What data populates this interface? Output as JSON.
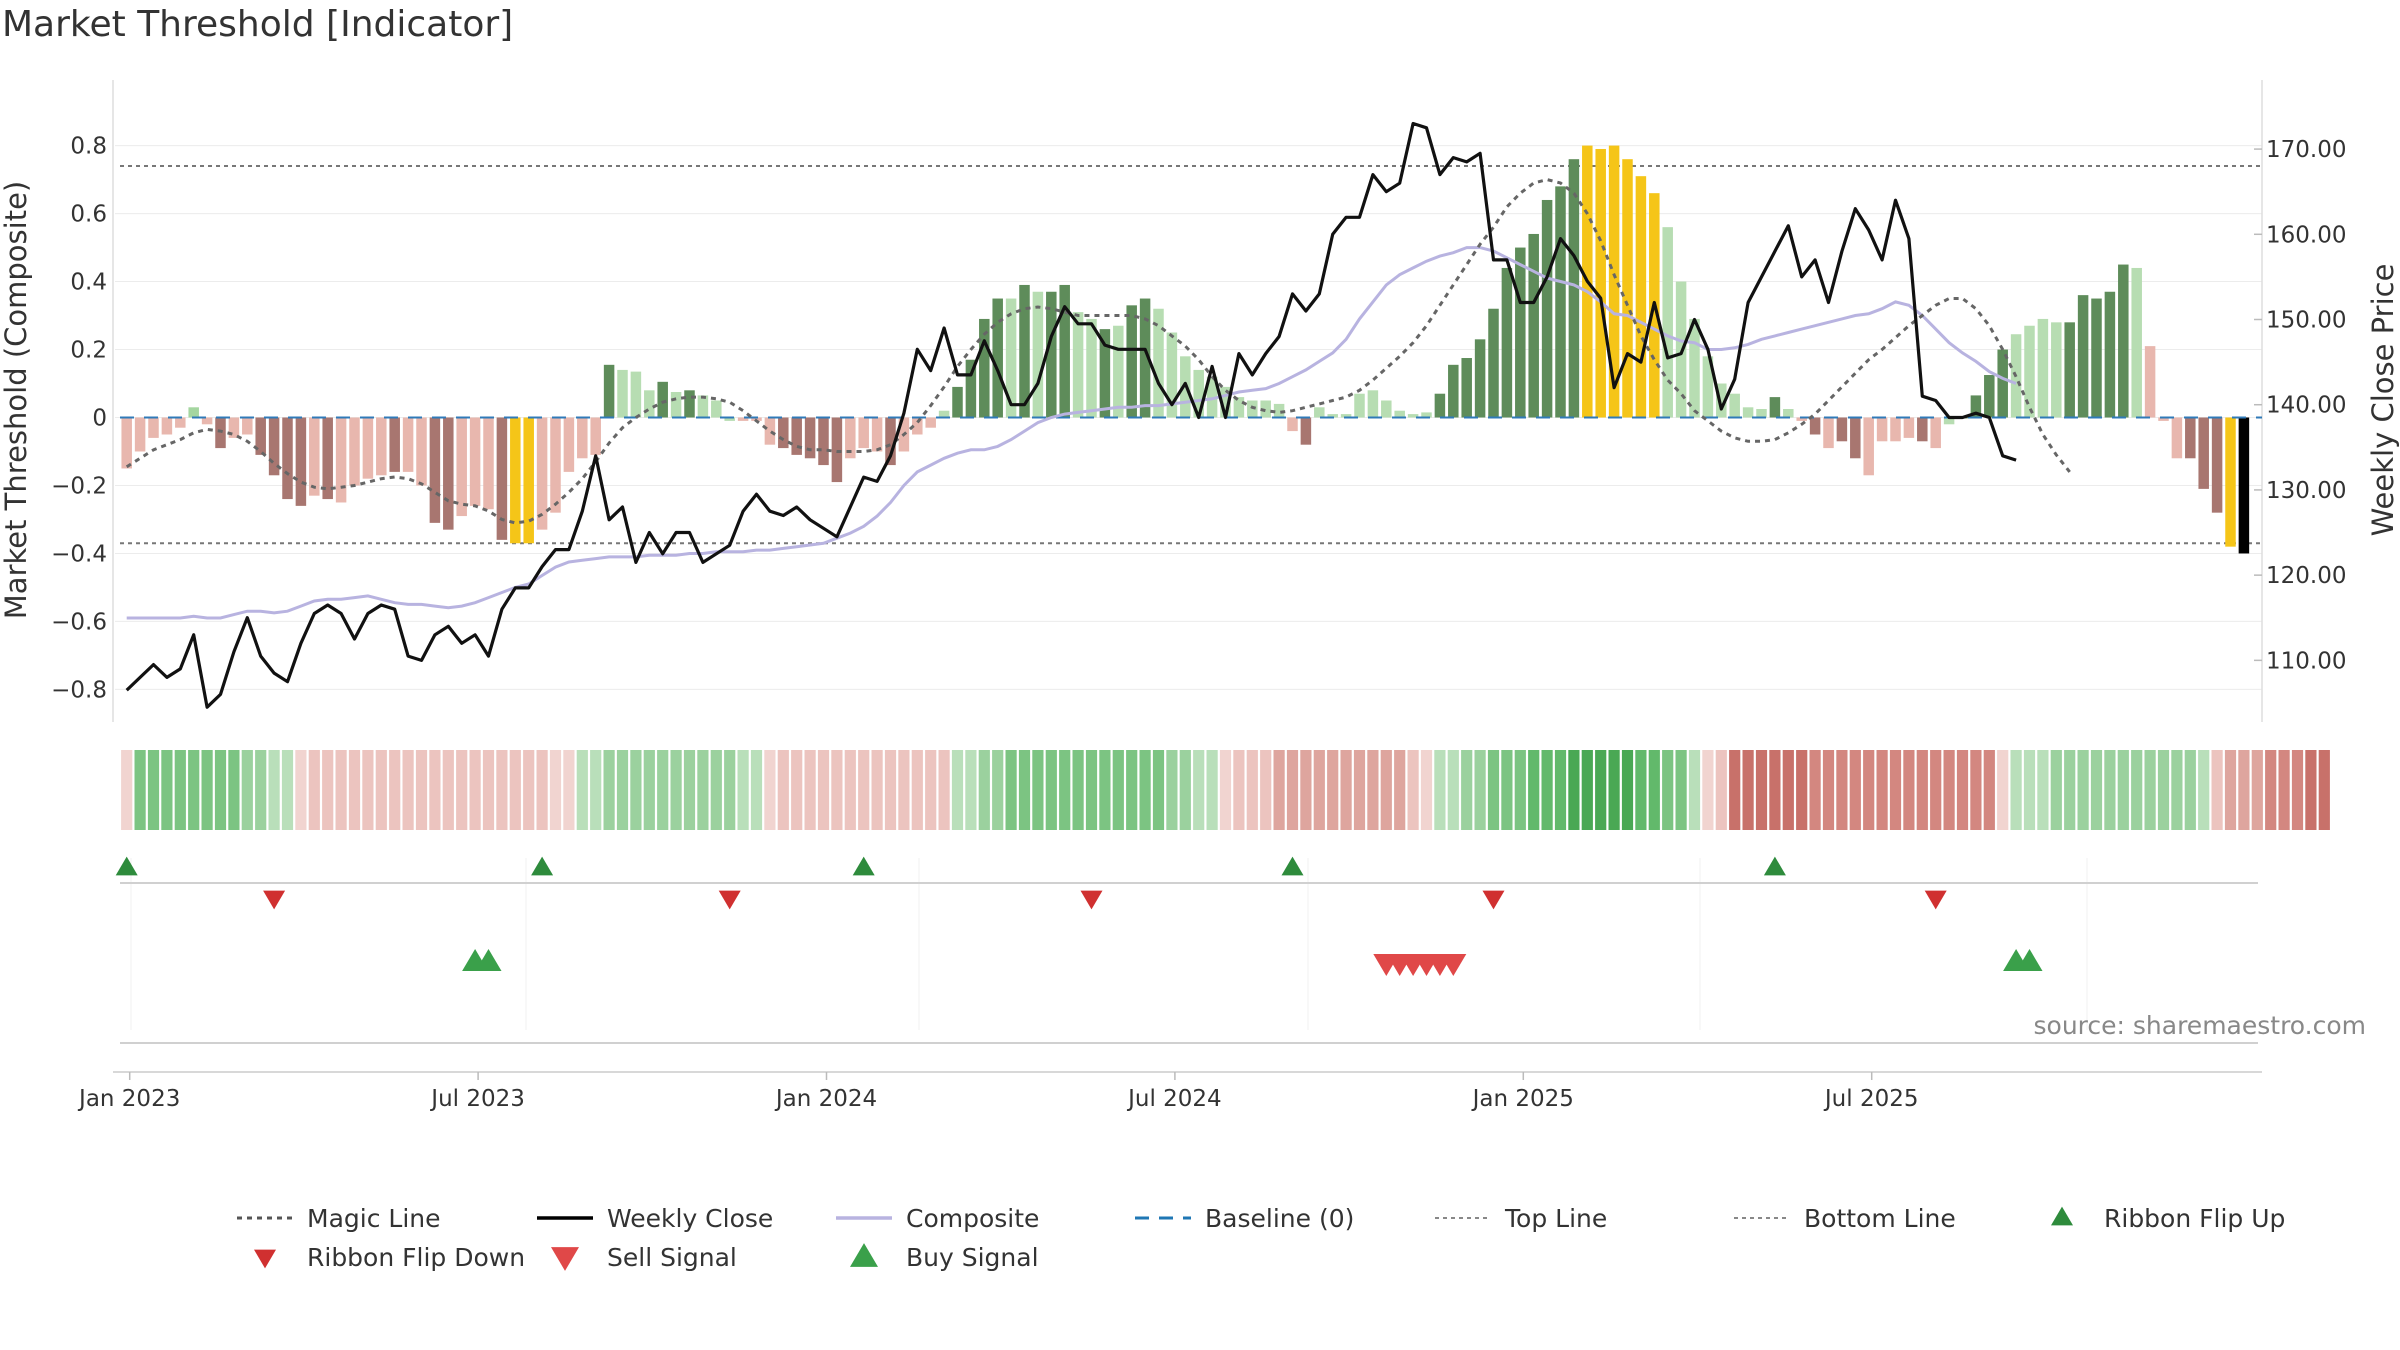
{
  "chart_data": {
    "title": "Market Threshold [Indicator]",
    "type": "bar",
    "ylabel_left": "Market Threshold (Composite)",
    "ylabel_right": "Weekly Close Price",
    "ylim_left": [
      -0.89,
      0.89
    ],
    "ylim_right": [
      103,
      174
    ],
    "left_ticks": [
      {
        "v": 0.8,
        "label": "0.8"
      },
      {
        "v": 0.6,
        "label": "0.6"
      },
      {
        "v": 0.4,
        "label": "0.4"
      },
      {
        "v": 0.2,
        "label": "0.2"
      },
      {
        "v": 0,
        "label": "0"
      },
      {
        "v": -0.2,
        "label": "−0.2"
      },
      {
        "v": -0.4,
        "label": "−0.4"
      },
      {
        "v": -0.6,
        "label": "−0.6"
      },
      {
        "v": -0.8,
        "label": "−0.8"
      }
    ],
    "right_ticks": [
      {
        "v": 170,
        "label": "170.00"
      },
      {
        "v": 160,
        "label": "160.00"
      },
      {
        "v": 150,
        "label": "150.00"
      },
      {
        "v": 140,
        "label": "140.00"
      },
      {
        "v": 130,
        "label": "130.00"
      },
      {
        "v": 120,
        "label": "120.00"
      },
      {
        "v": 110,
        "label": "110.00"
      }
    ],
    "x_ticks": [
      {
        "week": 1,
        "label": "Jan 2023"
      },
      {
        "week": 27,
        "label": "Jul 2023"
      },
      {
        "week": 53,
        "label": "Jan 2024"
      },
      {
        "week": 79,
        "label": "Jul 2024"
      },
      {
        "week": 105,
        "label": "Jan 2025"
      },
      {
        "week": 131,
        "label": "Jul 2025"
      }
    ],
    "top_line": 0.74,
    "bottom_line": -0.37,
    "composite": [
      -0.145,
      -0.115,
      -0.09,
      -0.075,
      -0.055,
      -0.04,
      -0.035,
      -0.04,
      -0.05,
      -0.065,
      -0.09,
      -0.12,
      -0.15,
      -0.175,
      -0.195,
      -0.205,
      -0.205,
      -0.2,
      -0.19,
      -0.18,
      -0.175,
      -0.18,
      -0.2,
      -0.225,
      -0.25,
      -0.26,
      -0.27,
      -0.29,
      -0.305,
      -0.31,
      -0.3,
      -0.28,
      -0.25,
      -0.215,
      -0.175,
      -0.12,
      -0.07,
      -0.03,
      0,
      0.03,
      0.05,
      0.06,
      0.065,
      0.065,
      0.06,
      0.05,
      0.02,
      -0.01,
      -0.04,
      -0.065,
      -0.085,
      -0.09,
      -0.09,
      -0.095,
      -0.1,
      -0.105,
      -0.1,
      -0.085,
      -0.055,
      -0.02,
      0.03,
      0.09,
      0.15,
      0.2,
      0.245,
      0.28,
      0.31,
      0.33,
      0.33,
      0.325,
      0.315,
      0.31,
      0.31,
      0.3,
      0.28,
      0.25,
      0.22,
      0.19,
      0.15,
      0.11,
      0.07,
      0.04,
      0.02,
      0.01,
      0.01,
      0.015,
      0.025,
      0.04,
      0.05,
      0.065,
      0.08,
      0.1,
      0.13,
      0.165,
      0.2,
      0.235,
      0.28,
      0.34,
      0.4,
      0.46,
      0.52,
      0.57,
      0.62,
      0.655,
      0.68,
      0.69,
      0.685,
      0.655,
      0.6,
      0.52,
      0.43,
      0.34,
      0.26,
      0.2,
      0.15,
      0.11,
      0.07,
      0.03,
      0,
      -0.03,
      -0.05,
      -0.065,
      -0.07,
      -0.07,
      -0.055,
      -0.03,
      0,
      0.03,
      0.06,
      0.1,
      0.14,
      0.18,
      0.215,
      0.245,
      0.275,
      0.3,
      0.33,
      0.35,
      0.34,
      0.3,
      0.24,
      0.16,
      0.07,
      -0.01,
      -0.07,
      -0.12,
      -0.165
    ],
    "bars": [
      -0.15,
      -0.1,
      -0.06,
      -0.05,
      -0.03,
      0.03,
      -0.02,
      -0.09,
      -0.06,
      -0.05,
      -0.11,
      -0.17,
      -0.24,
      -0.26,
      -0.23,
      -0.24,
      -0.25,
      -0.2,
      -0.18,
      -0.17,
      -0.16,
      -0.16,
      -0.2,
      -0.31,
      -0.33,
      -0.29,
      -0.26,
      -0.27,
      -0.36,
      -0.37,
      -0.37,
      -0.33,
      -0.28,
      -0.16,
      -0.12,
      -0.11,
      0.155,
      0.14,
      0.135,
      0.08,
      0.105,
      0.075,
      0.08,
      0.065,
      0.05,
      -0.01,
      -0.01,
      -0.01,
      -0.08,
      -0.09,
      -0.11,
      -0.12,
      -0.14,
      -0.19,
      -0.12,
      -0.09,
      -0.1,
      -0.14,
      -0.1,
      -0.05,
      -0.03,
      0.02,
      0.09,
      0.17,
      0.29,
      0.35,
      0.35,
      0.39,
      0.37,
      0.37,
      0.39,
      0.31,
      0.29,
      0.26,
      0.27,
      0.33,
      0.35,
      0.32,
      0.25,
      0.18,
      0.14,
      0.12,
      0.09,
      0.06,
      0.05,
      0.05,
      0.04,
      -0.04,
      -0.08,
      0.03,
      0.01,
      0.01,
      0.07,
      0.08,
      0.05,
      0.02,
      0.01,
      0.015,
      0.07,
      0.155,
      0.175,
      0.23,
      0.32,
      0.44,
      0.5,
      0.54,
      0.64,
      0.68,
      0.76,
      0.8,
      0.79,
      0.8,
      0.76,
      0.71,
      0.66,
      0.56,
      0.4,
      0.29,
      0.18,
      0.1,
      0.07,
      0.03,
      0.025,
      0.06,
      0.025,
      -0.01,
      -0.05,
      -0.09,
      -0.07,
      -0.12,
      -0.17,
      -0.07,
      -0.07,
      -0.06,
      -0.07,
      -0.09,
      -0.02,
      0,
      0.065,
      0.125,
      0.2,
      0.245,
      0.27,
      0.29,
      0.28,
      0.28,
      0.36,
      0.35,
      0.37,
      0.45,
      0.44,
      0.21,
      -0.01,
      -0.12,
      -0.12,
      -0.21,
      -0.28,
      -0.38,
      -0.4
    ],
    "bar_colors": [
      "#e8b7ae",
      "#e8b7ae",
      "#e8b7ae",
      "#e8b7ae",
      "#e8b7ae",
      "#a4d6a0",
      "#e8b7ae",
      "#a87670",
      "#e8b7ae",
      "#e8b7ae",
      "#a87670",
      "#a87670",
      "#a87670",
      "#a87670",
      "#e8b7ae",
      "#a87670",
      "#e8b7ae",
      "#e8b7ae",
      "#e8b7ae",
      "#e8b7ae",
      "#a87670",
      "#e8b7ae",
      "#e8b7ae",
      "#a87670",
      "#a87670",
      "#e8b7ae",
      "#e8b7ae",
      "#e8b7ae",
      "#a87670",
      "#f5c518",
      "#f5c518",
      "#e8b7ae",
      "#e8b7ae",
      "#e8b7ae",
      "#e8b7ae",
      "#e8b7ae",
      "#5e8c5a",
      "#b7ddb2",
      "#b7ddb2",
      "#b7ddb2",
      "#5e8c5a",
      "#b7ddb2",
      "#5e8c5a",
      "#b7ddb2",
      "#b7ddb2",
      "#b7ddb2",
      "#e8b7ae",
      "#e8b7ae",
      "#e8b7ae",
      "#a87670",
      "#a87670",
      "#a87670",
      "#a87670",
      "#a87670",
      "#e8b7ae",
      "#e8b7ae",
      "#e8b7ae",
      "#a87670",
      "#e8b7ae",
      "#e8b7ae",
      "#e8b7ae",
      "#b7ddb2",
      "#5e8c5a",
      "#5e8c5a",
      "#5e8c5a",
      "#5e8c5a",
      "#b7ddb2",
      "#5e8c5a",
      "#b7ddb2",
      "#5e8c5a",
      "#5e8c5a",
      "#b7ddb2",
      "#b7ddb2",
      "#5e8c5a",
      "#b7ddb2",
      "#5e8c5a",
      "#5e8c5a",
      "#b7ddb2",
      "#b7ddb2",
      "#b7ddb2",
      "#b7ddb2",
      "#b7ddb2",
      "#b7ddb2",
      "#b7ddb2",
      "#b7ddb2",
      "#b7ddb2",
      "#b7ddb2",
      "#e8b7ae",
      "#a87670",
      "#b7ddb2",
      "#b7ddb2",
      "#b7ddb2",
      "#b7ddb2",
      "#b7ddb2",
      "#b7ddb2",
      "#b7ddb2",
      "#b7ddb2",
      "#b7ddb2",
      "#5e8c5a",
      "#5e8c5a",
      "#5e8c5a",
      "#5e8c5a",
      "#5e8c5a",
      "#5e8c5a",
      "#5e8c5a",
      "#5e8c5a",
      "#5e8c5a",
      "#5e8c5a",
      "#5e8c5a",
      "#f5c518",
      "#f5c518",
      "#f5c518",
      "#f5c518",
      "#f5c518",
      "#f5c518",
      "#b7ddb2",
      "#b7ddb2",
      "#b7ddb2",
      "#b7ddb2",
      "#b7ddb2",
      "#b7ddb2",
      "#b7ddb2",
      "#b7ddb2",
      "#5e8c5a",
      "#b7ddb2",
      "#e8b7ae",
      "#a87670",
      "#e8b7ae",
      "#a87670",
      "#a87670",
      "#e8b7ae",
      "#e8b7ae",
      "#e8b7ae",
      "#e8b7ae",
      "#a87670",
      "#e8b7ae",
      "#b7ddb2",
      "#5e8c5a",
      "#5e8c5a",
      "#5e8c5a",
      "#5e8c5a",
      "#b7ddb2",
      "#b7ddb2",
      "#b7ddb2",
      "#b7ddb2",
      "#5e8c5a",
      "#5e8c5a",
      "#5e8c5a",
      "#5e8c5a",
      "#5e8c5a",
      "#b7ddb2",
      "#e8b7ae",
      "#e8b7ae",
      "#e8b7ae",
      "#a87670",
      "#a87670",
      "#a87670",
      "#f5c518"
    ],
    "ribbon_colors": [
      "#f1d4d0",
      "#7cc482",
      "#7cc482",
      "#7cc482",
      "#7cc482",
      "#7cc482",
      "#7cc482",
      "#7cc482",
      "#7cc482",
      "#9bd19e",
      "#9bd19e",
      "#b9dfba",
      "#b9dfba",
      "#f1d4d0",
      "#ecc4bf",
      "#ecc4bf",
      "#ecc4bf",
      "#ecc4bf",
      "#ecc4bf",
      "#ecc4bf",
      "#ecc4bf",
      "#ecc4bf",
      "#ecc4bf",
      "#ecc4bf",
      "#ecc4bf",
      "#ecc4bf",
      "#ecc4bf",
      "#ecc4bf",
      "#ecc4bf",
      "#ecc4bf",
      "#ecc4bf",
      "#ecc4bf",
      "#f1d4d0",
      "#f1d4d0",
      "#b9dfba",
      "#b9dfba",
      "#9bd19e",
      "#9bd19e",
      "#9bd19e",
      "#9bd19e",
      "#9bd19e",
      "#9bd19e",
      "#9bd19e",
      "#9bd19e",
      "#9bd19e",
      "#9bd19e",
      "#b9dfba",
      "#b9dfba",
      "#f1d4d0",
      "#ecc4bf",
      "#ecc4bf",
      "#ecc4bf",
      "#ecc4bf",
      "#ecc4bf",
      "#ecc4bf",
      "#ecc4bf",
      "#ecc4bf",
      "#ecc4bf",
      "#ecc4bf",
      "#ecc4bf",
      "#ecc4bf",
      "#ecc4bf",
      "#b9dfba",
      "#b9dfba",
      "#9bd19e",
      "#9bd19e",
      "#7cc482",
      "#7cc482",
      "#7cc482",
      "#7cc482",
      "#7cc482",
      "#7cc482",
      "#7cc482",
      "#7cc482",
      "#7cc482",
      "#7cc482",
      "#7cc482",
      "#7cc482",
      "#9bd19e",
      "#9bd19e",
      "#b9dfba",
      "#b9dfba",
      "#f1d4d0",
      "#ecc4bf",
      "#ecc4bf",
      "#ecc4bf",
      "#dea59e",
      "#dea59e",
      "#dea59e",
      "#dea59e",
      "#dea59e",
      "#dea59e",
      "#dea59e",
      "#dea59e",
      "#dea59e",
      "#dea59e",
      "#ecc4bf",
      "#f1d4d0",
      "#b9dfba",
      "#b9dfba",
      "#9bd19e",
      "#9bd19e",
      "#7cc482",
      "#7cc482",
      "#7cc482",
      "#62b96b",
      "#62b96b",
      "#62b96b",
      "#4aa854",
      "#4aa854",
      "#4aa854",
      "#4aa854",
      "#4aa854",
      "#62b96b",
      "#62b96b",
      "#7cc482",
      "#7cc482",
      "#b9dfba",
      "#f1d4d0",
      "#ecc4bf",
      "#c8716a",
      "#c8716a",
      "#c8716a",
      "#c8716a",
      "#c8716a",
      "#c8716a",
      "#d38780",
      "#d38780",
      "#d38780",
      "#d38780",
      "#d38780",
      "#d38780",
      "#d38780",
      "#d38780",
      "#d38780",
      "#d38780",
      "#d38780",
      "#d38780",
      "#d38780",
      "#d38780",
      "#f1d4d0",
      "#b9dfba",
      "#b9dfba",
      "#b9dfba",
      "#9bd19e",
      "#9bd19e",
      "#9bd19e",
      "#9bd19e",
      "#9bd19e",
      "#9bd19e",
      "#9bd19e",
      "#9bd19e",
      "#9bd19e",
      "#9bd19e",
      "#9bd19e",
      "#b9dfba",
      "#ecc4bf",
      "#dea59e",
      "#dea59e",
      "#dea59e",
      "#d38780",
      "#d38780",
      "#d38780",
      "#c8716a",
      "#c8716a"
    ],
    "series": [
      {
        "name": "Magic Line",
        "values": [
          -0.145,
          -0.12,
          -0.095,
          -0.08,
          -0.065,
          -0.045,
          -0.035,
          -0.04,
          -0.05,
          -0.07,
          -0.1,
          -0.135,
          -0.165,
          -0.19,
          -0.205,
          -0.21,
          -0.205,
          -0.2,
          -0.19,
          -0.18,
          -0.175,
          -0.18,
          -0.195,
          -0.22,
          -0.245,
          -0.255,
          -0.26,
          -0.275,
          -0.3,
          -0.31,
          -0.305,
          -0.285,
          -0.255,
          -0.22,
          -0.18,
          -0.13,
          -0.075,
          -0.03,
          0,
          0.025,
          0.045,
          0.055,
          0.06,
          0.06,
          0.055,
          0.045,
          0.02,
          -0.01,
          -0.04,
          -0.065,
          -0.085,
          -0.095,
          -0.095,
          -0.1,
          -0.1,
          -0.1,
          -0.095,
          -0.08,
          -0.05,
          -0.015,
          0.035,
          0.09,
          0.15,
          0.2,
          0.245,
          0.28,
          0.305,
          0.32,
          0.325,
          0.32,
          0.31,
          0.3,
          0.3,
          0.3,
          0.3,
          0.3,
          0.29,
          0.27,
          0.24,
          0.21,
          0.17,
          0.12,
          0.08,
          0.05,
          0.03,
          0.02,
          0.015,
          0.02,
          0.03,
          0.04,
          0.05,
          0.06,
          0.08,
          0.11,
          0.145,
          0.18,
          0.22,
          0.27,
          0.33,
          0.39,
          0.45,
          0.51,
          0.56,
          0.62,
          0.66,
          0.69,
          0.7,
          0.69,
          0.66,
          0.6,
          0.52,
          0.42,
          0.33,
          0.24,
          0.17,
          0.11,
          0.07,
          0.02,
          -0.01,
          -0.04,
          -0.06,
          -0.07,
          -0.07,
          -0.065,
          -0.045,
          -0.02,
          0.01,
          0.05,
          0.09,
          0.13,
          0.17,
          0.2,
          0.235,
          0.27,
          0.3,
          0.33,
          0.35,
          0.35,
          0.32,
          0.27,
          0.2,
          0.12,
          0.03,
          -0.05,
          -0.11,
          -0.16
        ]
      },
      {
        "name": "Weekly Close",
        "values": [
          106.5,
          108,
          109.5,
          108,
          109,
          113,
          104.5,
          106,
          111,
          115,
          110.5,
          108.5,
          107.5,
          112,
          115.5,
          116.5,
          115.5,
          112.5,
          115.5,
          116.5,
          116,
          110.5,
          110,
          113,
          114,
          112,
          113,
          110.5,
          116,
          118.5,
          118.5,
          121,
          123,
          123,
          127.5,
          134,
          126.5,
          128,
          121.5,
          125,
          122.5,
          125,
          125,
          121.5,
          122.5,
          123.5,
          127.5,
          129.5,
          127.5,
          127,
          128,
          126.5,
          125.5,
          124.5,
          128,
          131.5,
          131,
          134,
          139,
          146.5,
          144,
          149,
          143.5,
          143.5,
          147.5,
          144,
          140,
          140,
          142.5,
          148,
          151.5,
          149.5,
          149.5,
          147,
          146.5,
          146.5,
          146.5,
          142.5,
          140,
          142.5,
          138.5,
          144.5,
          138.5,
          146,
          143.5,
          146,
          148,
          153,
          151,
          153,
          160,
          162,
          162,
          167,
          165,
          166,
          173,
          172.5,
          167,
          169,
          168.5,
          169.5,
          157,
          157,
          152,
          152,
          155,
          159.5,
          157.5,
          154.5,
          152.5,
          142,
          146,
          145,
          152,
          145.5,
          146,
          150,
          146.5,
          139.5,
          143,
          152,
          155,
          158,
          161,
          155,
          157,
          152,
          158,
          163,
          160.5,
          157,
          164,
          159.5,
          141,
          140.5,
          138.5,
          138.5,
          139,
          138.5,
          134,
          133.5
        ]
      },
      {
        "name": "Composite",
        "values": [
          -0.59,
          -0.59,
          -0.59,
          -0.59,
          -0.59,
          -0.585,
          -0.59,
          -0.59,
          -0.58,
          -0.57,
          -0.57,
          -0.575,
          -0.57,
          -0.555,
          -0.54,
          -0.535,
          -0.535,
          -0.53,
          -0.525,
          -0.535,
          -0.545,
          -0.55,
          -0.55,
          -0.555,
          -0.56,
          -0.555,
          -0.545,
          -0.53,
          -0.515,
          -0.5,
          -0.49,
          -0.465,
          -0.44,
          -0.425,
          -0.42,
          -0.415,
          -0.41,
          -0.41,
          -0.41,
          -0.405,
          -0.405,
          -0.405,
          -0.4,
          -0.4,
          -0.395,
          -0.395,
          -0.395,
          -0.39,
          -0.39,
          -0.385,
          -0.38,
          -0.375,
          -0.37,
          -0.355,
          -0.34,
          -0.32,
          -0.29,
          -0.25,
          -0.2,
          -0.16,
          -0.14,
          -0.12,
          -0.105,
          -0.095,
          -0.095,
          -0.085,
          -0.065,
          -0.04,
          -0.015,
          0,
          0.01,
          0.015,
          0.02,
          0.025,
          0.03,
          0.03,
          0.035,
          0.035,
          0.04,
          0.045,
          0.05,
          0.055,
          0.065,
          0.075,
          0.08,
          0.085,
          0.1,
          0.12,
          0.14,
          0.165,
          0.19,
          0.23,
          0.29,
          0.34,
          0.39,
          0.42,
          0.44,
          0.46,
          0.475,
          0.485,
          0.5,
          0.5,
          0.49,
          0.47,
          0.45,
          0.43,
          0.41,
          0.4,
          0.39,
          0.37,
          0.34,
          0.305,
          0.3,
          0.28,
          0.26,
          0.24,
          0.225,
          0.22,
          0.2,
          0.2,
          0.205,
          0.215,
          0.23,
          0.24,
          0.25,
          0.26,
          0.27,
          0.28,
          0.29,
          0.3,
          0.305,
          0.32,
          0.34,
          0.33,
          0.3,
          0.26,
          0.22,
          0.19,
          0.165,
          0.135,
          0.115,
          0.1
        ]
      }
    ],
    "flip_up_weeks": [
      1,
      32,
      56,
      88,
      124
    ],
    "flip_down_weeks": [
      12,
      46,
      73,
      103,
      136
    ],
    "buy_signal_weeks": [
      27,
      28,
      142,
      143
    ],
    "sell_signal_weeks": [
      95,
      96,
      97,
      98,
      99,
      100
    ],
    "legend": [
      {
        "label": "Magic Line",
        "kind": "dotted",
        "color": "#555555"
      },
      {
        "label": "Weekly Close",
        "kind": "solid",
        "color": "#000000"
      },
      {
        "label": "Composite",
        "kind": "solid",
        "color": "#b8b3e0"
      },
      {
        "label": "Baseline (0)",
        "kind": "dashed",
        "color": "#1f77b4"
      },
      {
        "label": "Top Line",
        "kind": "dotted-light",
        "color": "#888888"
      },
      {
        "label": "Bottom Line",
        "kind": "dotted-light",
        "color": "#888888"
      },
      {
        "label": "Ribbon Flip Up",
        "kind": "tri-up",
        "color": "#2e8b3c"
      },
      {
        "label": "Ribbon Flip Down",
        "kind": "tri-down",
        "color": "#d03030"
      },
      {
        "label": "Sell Signal",
        "kind": "tri-down-big",
        "color": "#e04848"
      },
      {
        "label": "Buy Signal",
        "kind": "tri-up-big",
        "color": "#3aa04a"
      }
    ],
    "source": "source: sharemaestro.com"
  }
}
